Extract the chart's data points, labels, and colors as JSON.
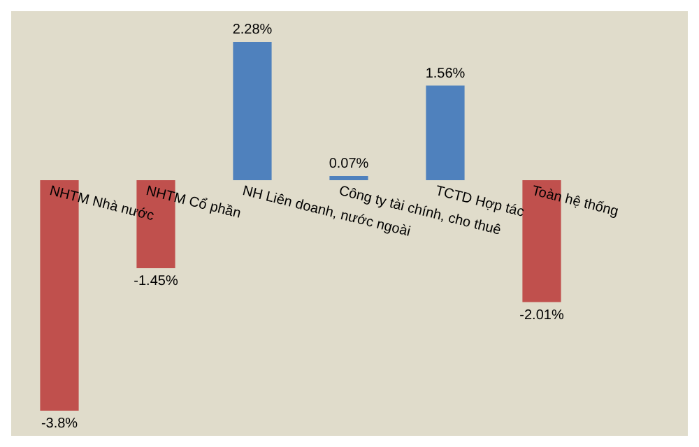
{
  "chart_data": {
    "type": "bar",
    "categories": [
      "NHTM Nhà nước",
      "NHTM Cổ phần",
      "NH Liên doanh, nước ngoài",
      "Công ty tài chính, cho thuê",
      "TCTD Hợp tác",
      "Toàn hệ thống"
    ],
    "values": [
      -3.8,
      -1.45,
      2.28,
      0.07,
      1.56,
      -2.01
    ],
    "colors": [
      "#c0504d",
      "#c0504d",
      "#4f81bd",
      "#4f81bd",
      "#4f81bd",
      "#c0504d"
    ],
    "value_labels": [
      "-3.8%",
      "-1.45%",
      "2.28%",
      "0.07%",
      "1.56%",
      "-2.01%"
    ],
    "grid": false,
    "legend": false
  }
}
